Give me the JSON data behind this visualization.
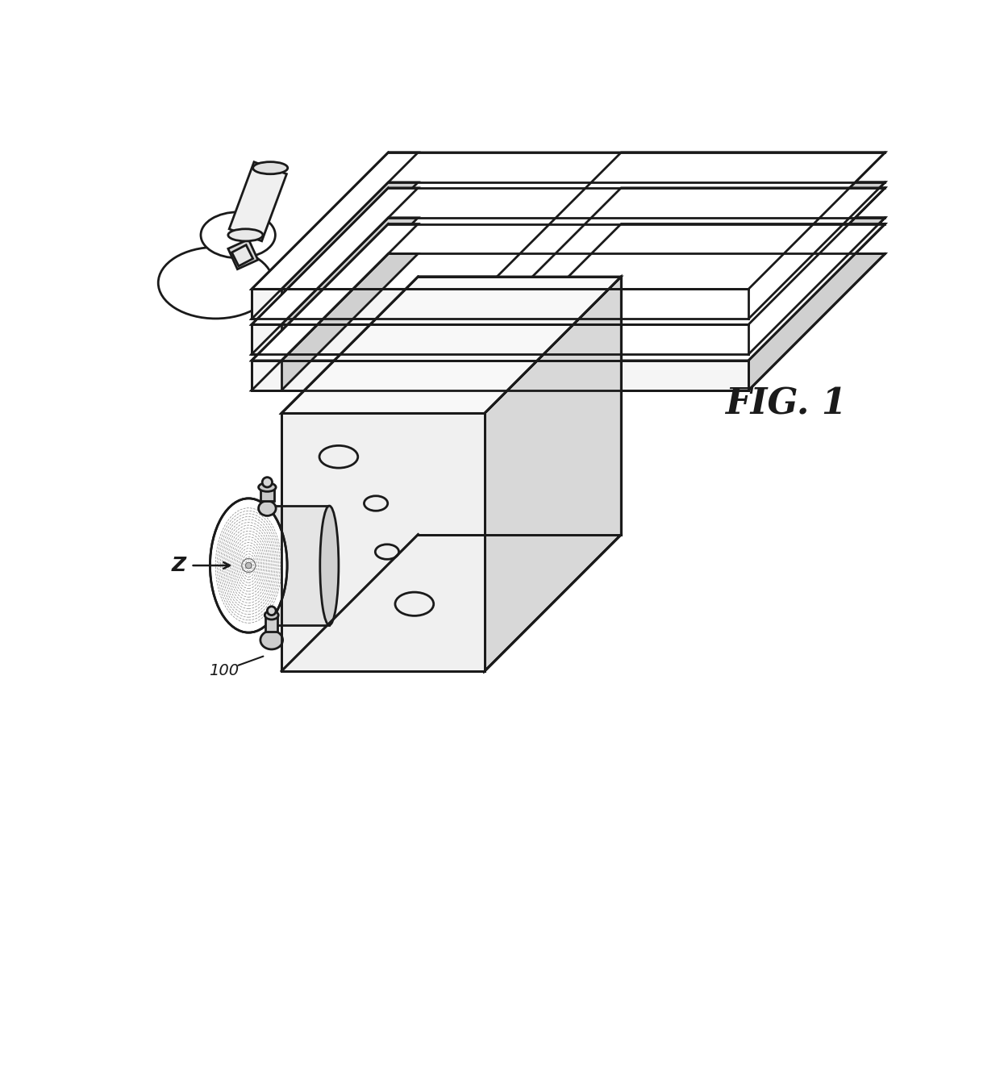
{
  "background_color": "#ffffff",
  "line_color": "#1a1a1a",
  "line_width": 2.0,
  "fig_label": "FIG. 1",
  "label_z": "Z",
  "label_100": "100",
  "fig_width": 12.4,
  "fig_height": 13.5,
  "dpi": 100,
  "fc_front": "#f0f0f0",
  "fc_top": "#f8f8f8",
  "fc_right": "#d8d8d8",
  "fc_white": "#ffffff",
  "fc_gray": "#e8e8e8"
}
